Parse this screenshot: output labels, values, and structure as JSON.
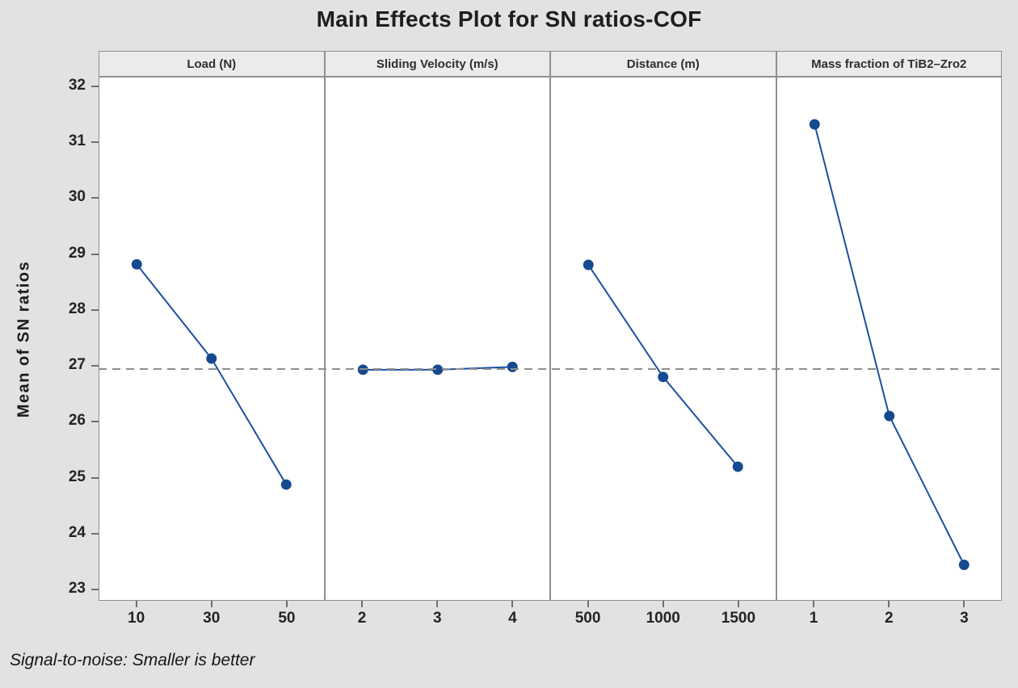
{
  "title": "Main Effects Plot for SN ratios-COF",
  "ylabel": "Mean of SN ratios",
  "footnote": "Signal-to-noise: Smaller is better",
  "chart_data": {
    "type": "line",
    "title": "Main Effects Plot for SN ratios-COF",
    "ylabel": "Mean of SN ratios",
    "footnote": "Signal-to-noise: Smaller is better",
    "y_ticks": [
      23,
      24,
      25,
      26,
      27,
      28,
      29,
      30,
      31,
      32
    ],
    "ylim": [
      22.8,
      32.17
    ],
    "grand_mean": 26.95,
    "grid": false,
    "legend": "none",
    "panels": [
      {
        "label": "Load (N)",
        "x_ticks": [
          "10",
          "30",
          "50"
        ],
        "x_values": [
          10,
          30,
          50
        ],
        "values": [
          28.82,
          27.13,
          24.87
        ]
      },
      {
        "label": "Sliding Velocity (m/s)",
        "x_ticks": [
          "2",
          "3",
          "4"
        ],
        "x_values": [
          2,
          3,
          4
        ],
        "values": [
          26.93,
          26.93,
          26.98
        ]
      },
      {
        "label": "Distance (m)",
        "x_ticks": [
          "500",
          "1000",
          "1500"
        ],
        "x_values": [
          500,
          1000,
          1500
        ],
        "values": [
          28.81,
          26.8,
          25.19
        ]
      },
      {
        "label": "Mass fraction of TiB2–Zro2",
        "x_ticks": [
          "1",
          "2",
          "3"
        ],
        "x_values": [
          1,
          2,
          3
        ],
        "values": [
          31.33,
          26.1,
          23.43
        ]
      }
    ],
    "colors": {
      "line": "#1c4e9c",
      "marker": "#16498f",
      "dashed_line": "#8e8e8e",
      "panel_background": "#ffffff",
      "header_background": "#ebebeb",
      "figure_background": "#e2e2e2",
      "border": "#8f8f8f"
    }
  }
}
